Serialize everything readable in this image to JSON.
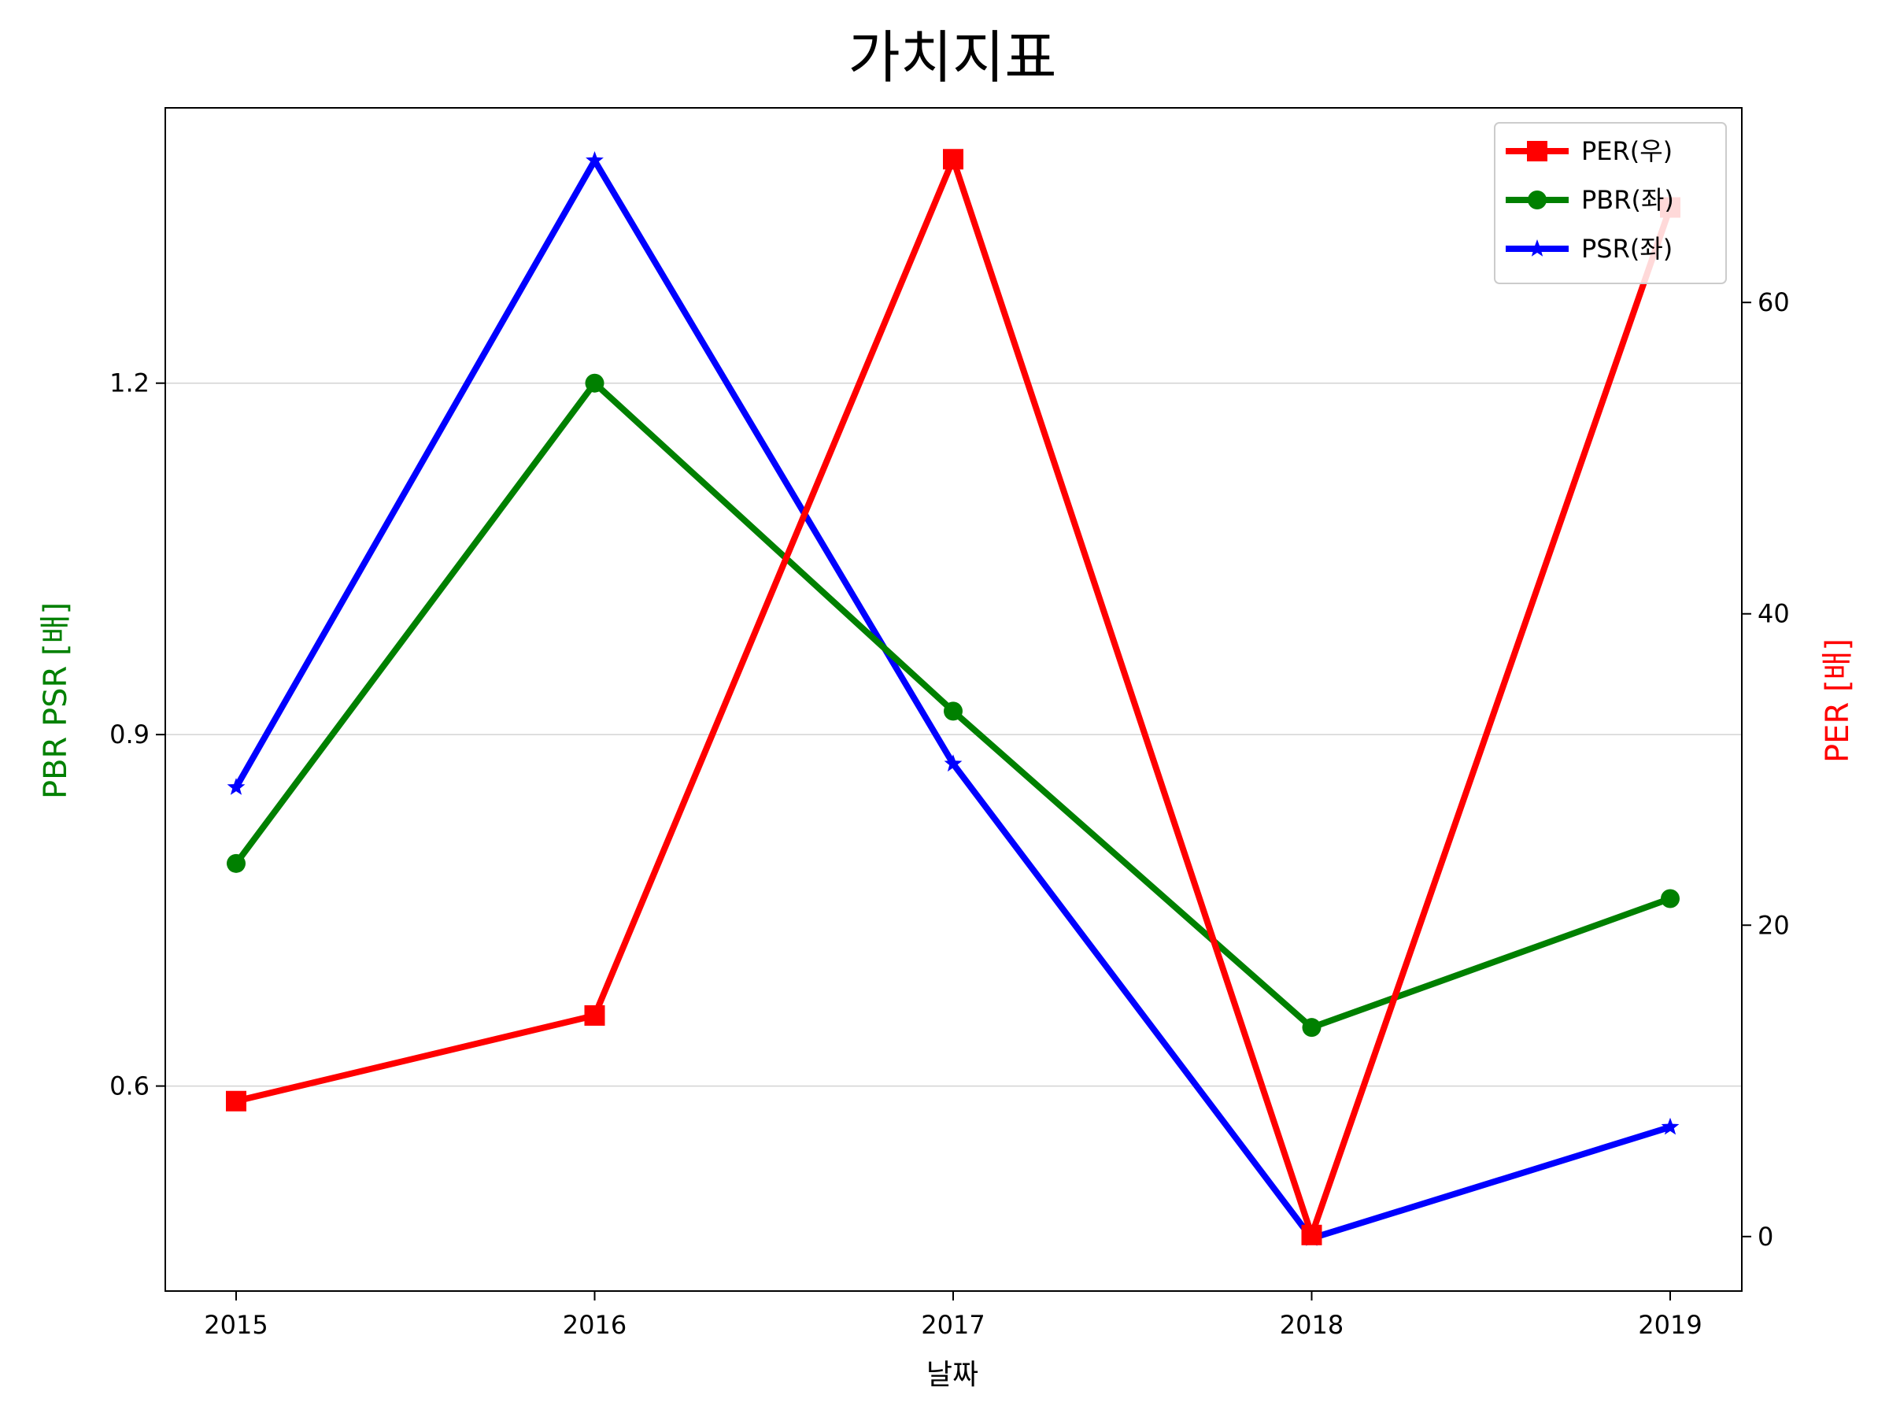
{
  "chart_data": {
    "type": "line",
    "title": "가치지표",
    "xlabel": "날짜",
    "ylabel_left": "PBR PSR [배]",
    "ylabel_right": "PER [배]",
    "categories": [
      "2015",
      "2016",
      "2017",
      "2018",
      "2019"
    ],
    "left_axis": {
      "ylim": [
        0.425,
        1.435
      ],
      "ticks": [
        0.6,
        0.9,
        1.2
      ],
      "tick_labels": [
        "0.6",
        "0.9",
        "1.2"
      ],
      "grid": true
    },
    "right_axis": {
      "ylim": [
        -3.5,
        72.5
      ],
      "ticks": [
        0,
        20,
        40,
        60
      ],
      "tick_labels": [
        "0",
        "20",
        "40",
        "60"
      ]
    },
    "series": [
      {
        "name": "PER(우)",
        "axis": "right",
        "color": "#ff0000",
        "marker": "square",
        "values": [
          8.7,
          14.2,
          69.2,
          0.1,
          66.1
        ]
      },
      {
        "name": "PBR(좌)",
        "axis": "left",
        "color": "#008000",
        "marker": "circle",
        "values": [
          0.79,
          1.2,
          0.92,
          0.65,
          0.76
        ]
      },
      {
        "name": "PSR(좌)",
        "axis": "left",
        "color": "#0000ff",
        "marker": "star",
        "values": [
          0.855,
          1.39,
          0.875,
          0.47,
          0.565
        ]
      }
    ],
    "legend": {
      "position": "top-right",
      "order": [
        "PER(우)",
        "PBR(좌)",
        "PSR(좌)"
      ]
    },
    "colors": {
      "left_label": "#008000",
      "right_label": "#ff0000"
    }
  }
}
